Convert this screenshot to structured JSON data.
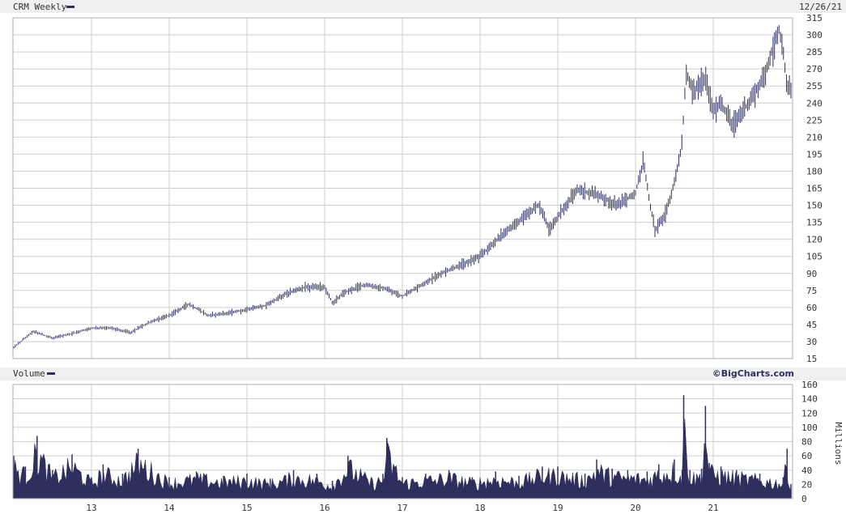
{
  "header": {
    "symbol_label": "CRM Weekly",
    "date": "12/26/21"
  },
  "volume_header": {
    "label": "Volume",
    "copyright": "©BigCharts.com"
  },
  "colors": {
    "series": "#2f2f5e",
    "grid": "#cfcfcf",
    "header_bg": "#f0f0f0",
    "axis_text": "#333333"
  },
  "chart_data": [
    {
      "type": "line",
      "style": "weekly OHLC bars",
      "title": "CRM Weekly",
      "xlabel": "",
      "ylabel": "",
      "x_tick_labels": [
        "13",
        "14",
        "15",
        "16",
        "17",
        "18",
        "19",
        "20",
        "21"
      ],
      "y_tick_labels": [
        "15",
        "30",
        "45",
        "60",
        "75",
        "90",
        "105",
        "120",
        "135",
        "150",
        "165",
        "180",
        "195",
        "210",
        "225",
        "240",
        "255",
        "270",
        "285",
        "300",
        "315"
      ],
      "ylim": [
        15,
        315
      ],
      "grid": true,
      "y_axis_side": "right",
      "series": [
        {
          "name": "CRM Weekly",
          "x": [
            2012.0,
            2012.25,
            2012.5,
            2012.75,
            2013.0,
            2013.25,
            2013.5,
            2013.75,
            2014.0,
            2014.25,
            2014.5,
            2014.75,
            2015.0,
            2015.25,
            2015.5,
            2015.75,
            2016.0,
            2016.1,
            2016.25,
            2016.5,
            2016.75,
            2017.0,
            2017.25,
            2017.5,
            2017.75,
            2018.0,
            2018.25,
            2018.5,
            2018.75,
            2018.9,
            2019.0,
            2019.25,
            2019.5,
            2019.75,
            2020.0,
            2020.1,
            2020.2,
            2020.25,
            2020.4,
            2020.5,
            2020.6,
            2020.65,
            2020.75,
            2020.9,
            2021.0,
            2021.1,
            2021.25,
            2021.4,
            2021.5,
            2021.65,
            2021.75,
            2021.85,
            2021.9,
            2021.95,
            2022.0
          ],
          "y": [
            25,
            39,
            33,
            37,
            42,
            42,
            38,
            47,
            53,
            63,
            53,
            55,
            58,
            62,
            72,
            78,
            78,
            64,
            73,
            80,
            77,
            70,
            80,
            90,
            97,
            105,
            122,
            136,
            150,
            128,
            140,
            163,
            160,
            150,
            160,
            190,
            145,
            128,
            145,
            170,
            205,
            265,
            250,
            262,
            232,
            240,
            220,
            235,
            245,
            262,
            285,
            306,
            285,
            252,
            252
          ]
        }
      ]
    },
    {
      "type": "area",
      "title": "Volume",
      "xlabel": "",
      "ylabel": "Millions",
      "x_tick_labels": [
        "13",
        "14",
        "15",
        "16",
        "17",
        "18",
        "19",
        "20",
        "21"
      ],
      "y_tick_labels": [
        "0",
        "20",
        "40",
        "60",
        "80",
        "100",
        "120",
        "140",
        "160"
      ],
      "ylim": [
        0,
        160
      ],
      "grid": true,
      "y_axis_side": "right",
      "series": [
        {
          "name": "Volume",
          "x": [
            2012.0,
            2012.15,
            2012.3,
            2012.5,
            2012.75,
            2013.0,
            2013.15,
            2013.4,
            2013.6,
            2014.0,
            2014.35,
            2014.7,
            2015.0,
            2015.3,
            2015.6,
            2015.9,
            2016.1,
            2016.3,
            2016.6,
            2016.75,
            2016.8,
            2017.0,
            2017.3,
            2017.6,
            2017.9,
            2018.2,
            2018.5,
            2018.8,
            2019.0,
            2019.35,
            2019.5,
            2019.7,
            2019.9,
            2020.15,
            2020.3,
            2020.5,
            2020.6,
            2020.62,
            2020.7,
            2020.85,
            2020.9,
            2020.95,
            2021.1,
            2021.3,
            2021.6,
            2021.9,
            2021.95,
            2022.0
          ],
          "y": [
            60,
            45,
            88,
            40,
            62,
            30,
            48,
            35,
            70,
            30,
            38,
            32,
            35,
            28,
            40,
            35,
            25,
            60,
            30,
            35,
            85,
            30,
            35,
            40,
            30,
            38,
            32,
            45,
            45,
            35,
            55,
            42,
            40,
            38,
            48,
            55,
            40,
            145,
            40,
            42,
            130,
            50,
            45,
            40,
            35,
            30,
            70,
            20
          ]
        }
      ]
    }
  ]
}
